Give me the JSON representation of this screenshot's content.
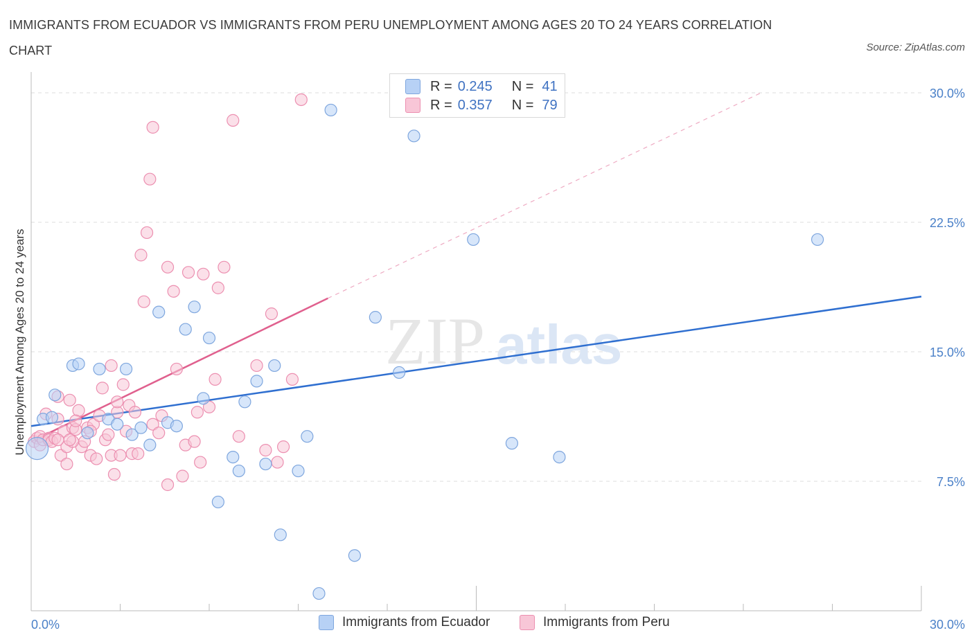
{
  "title": "IMMIGRANTS FROM ECUADOR VS IMMIGRANTS FROM PERU UNEMPLOYMENT AMONG AGES 20 TO 24 YEARS CORRELATION CHART",
  "source": "Source: ZipAtlas.com",
  "watermark": {
    "zip": "ZIP",
    "atlas": "atlas"
  },
  "colors": {
    "ecuador_fill": "#b7d1f5",
    "ecuador_stroke": "#7ea6de",
    "ecuador_line": "#2f6fd0",
    "peru_fill": "#f8c6d7",
    "peru_stroke": "#ec8fb0",
    "peru_line": "#e0608e",
    "tick_text": "#4a80c8",
    "grid": "#dddddd"
  },
  "legend": {
    "rows": [
      {
        "r_label": "R =",
        "r_value": "0.245",
        "n_label": "N =",
        "n_value": "41"
      },
      {
        "r_label": "R =",
        "r_value": "0.357",
        "n_label": "N =",
        "n_value": "79"
      }
    ]
  },
  "bottom_legend": {
    "ecuador": "Immigrants from Ecuador",
    "peru": "Immigrants from Peru"
  },
  "chart_data": {
    "type": "scatter",
    "title": "IMMIGRANTS FROM ECUADOR VS IMMIGRANTS FROM PERU UNEMPLOYMENT AMONG AGES 20 TO 24 YEARS CORRELATION CHART",
    "xlabel": "",
    "ylabel": "Unemployment Among Ages 20 to 24 years",
    "xlim": [
      0,
      30
    ],
    "ylim": [
      0,
      30
    ],
    "x_tick_labels": [
      "0.0%",
      "30.0%"
    ],
    "y_ticks": [
      7.5,
      15.0,
      22.5,
      30.0
    ],
    "y_tick_labels": [
      "7.5%",
      "15.0%",
      "22.5%",
      "30.0%"
    ],
    "grid": "horizontal dashed",
    "legend_position": "top-center",
    "series": [
      {
        "name": "Immigrants from Ecuador",
        "R": 0.245,
        "N": 41,
        "trend": {
          "x": [
            0,
            30
          ],
          "y": [
            10.7,
            18.2
          ],
          "style": "solid"
        },
        "points": [
          [
            0.2,
            9.4
          ],
          [
            0.4,
            11.1
          ],
          [
            0.8,
            12.5
          ],
          [
            0.7,
            11.2
          ],
          [
            1.4,
            14.2
          ],
          [
            1.6,
            14.3
          ],
          [
            1.9,
            10.3
          ],
          [
            2.3,
            14.0
          ],
          [
            2.6,
            11.1
          ],
          [
            2.9,
            10.8
          ],
          [
            3.2,
            14.0
          ],
          [
            3.4,
            10.2
          ],
          [
            3.7,
            10.6
          ],
          [
            4.0,
            9.6
          ],
          [
            4.3,
            17.3
          ],
          [
            4.6,
            10.9
          ],
          [
            4.9,
            10.7
          ],
          [
            5.2,
            16.3
          ],
          [
            5.5,
            17.6
          ],
          [
            5.8,
            12.3
          ],
          [
            6.0,
            15.8
          ],
          [
            6.3,
            6.3
          ],
          [
            6.8,
            8.9
          ],
          [
            7.0,
            8.1
          ],
          [
            7.2,
            12.1
          ],
          [
            7.6,
            13.3
          ],
          [
            7.9,
            8.5
          ],
          [
            8.2,
            14.2
          ],
          [
            8.4,
            4.4
          ],
          [
            9.0,
            8.1
          ],
          [
            9.3,
            10.1
          ],
          [
            9.7,
            1.0
          ],
          [
            10.1,
            29.0
          ],
          [
            10.9,
            3.2
          ],
          [
            11.6,
            17.0
          ],
          [
            12.4,
            13.8
          ],
          [
            12.9,
            27.5
          ],
          [
            14.9,
            21.5
          ],
          [
            16.2,
            9.7
          ],
          [
            17.8,
            8.9
          ],
          [
            26.5,
            21.5
          ]
        ]
      },
      {
        "name": "Immigrants from Peru",
        "R": 0.357,
        "N": 79,
        "trend": {
          "x": [
            0,
            10
          ],
          "y": [
            9.8,
            18.1
          ],
          "style": "solid"
        },
        "trend_extension": {
          "x": [
            10,
            24.6
          ],
          "y": [
            18.1,
            30.0
          ],
          "style": "dashed"
        },
        "points": [
          [
            0.1,
            9.8
          ],
          [
            0.2,
            10.0
          ],
          [
            0.3,
            9.6
          ],
          [
            0.3,
            10.1
          ],
          [
            0.4,
            9.9
          ],
          [
            0.5,
            11.4
          ],
          [
            0.6,
            10.0
          ],
          [
            0.6,
            9.9
          ],
          [
            0.7,
            9.8
          ],
          [
            0.8,
            10.0
          ],
          [
            0.9,
            11.1
          ],
          [
            0.9,
            12.4
          ],
          [
            1.0,
            9.0
          ],
          [
            1.1,
            10.4
          ],
          [
            1.2,
            8.5
          ],
          [
            1.2,
            9.5
          ],
          [
            1.3,
            12.2
          ],
          [
            1.4,
            10.6
          ],
          [
            1.5,
            10.5
          ],
          [
            1.6,
            11.6
          ],
          [
            1.7,
            9.5
          ],
          [
            1.8,
            9.8
          ],
          [
            1.9,
            10.6
          ],
          [
            2.0,
            9.0
          ],
          [
            2.1,
            10.8
          ],
          [
            2.2,
            8.8
          ],
          [
            2.3,
            11.3
          ],
          [
            2.4,
            12.9
          ],
          [
            2.5,
            9.9
          ],
          [
            2.6,
            10.2
          ],
          [
            2.7,
            9.0
          ],
          [
            2.7,
            14.2
          ],
          [
            2.8,
            7.9
          ],
          [
            2.9,
            11.5
          ],
          [
            3.0,
            9.0
          ],
          [
            3.1,
            13.1
          ],
          [
            3.2,
            10.4
          ],
          [
            3.3,
            11.9
          ],
          [
            3.4,
            9.1
          ],
          [
            3.5,
            11.5
          ],
          [
            3.6,
            9.1
          ],
          [
            3.7,
            20.6
          ],
          [
            3.8,
            17.9
          ],
          [
            3.9,
            21.9
          ],
          [
            4.0,
            25.0
          ],
          [
            4.1,
            28.0
          ],
          [
            4.1,
            10.8
          ],
          [
            4.3,
            10.3
          ],
          [
            4.4,
            11.3
          ],
          [
            4.6,
            7.3
          ],
          [
            4.6,
            19.9
          ],
          [
            4.8,
            18.5
          ],
          [
            4.9,
            14.0
          ],
          [
            5.1,
            7.8
          ],
          [
            5.2,
            9.6
          ],
          [
            5.3,
            19.6
          ],
          [
            5.5,
            9.8
          ],
          [
            5.6,
            11.5
          ],
          [
            5.7,
            8.6
          ],
          [
            5.8,
            19.5
          ],
          [
            6.0,
            11.8
          ],
          [
            6.2,
            13.4
          ],
          [
            6.3,
            18.7
          ],
          [
            6.5,
            19.9
          ],
          [
            6.8,
            28.4
          ],
          [
            7.0,
            10.1
          ],
          [
            7.6,
            14.2
          ],
          [
            7.9,
            9.3
          ],
          [
            8.1,
            17.2
          ],
          [
            8.3,
            8.6
          ],
          [
            8.5,
            9.5
          ],
          [
            8.8,
            13.4
          ],
          [
            9.1,
            29.6
          ],
          [
            1.4,
            9.8
          ],
          [
            1.5,
            11.0
          ],
          [
            2.9,
            12.1
          ],
          [
            0.9,
            9.9
          ],
          [
            1.3,
            9.9
          ],
          [
            2.0,
            10.4
          ]
        ]
      }
    ]
  }
}
